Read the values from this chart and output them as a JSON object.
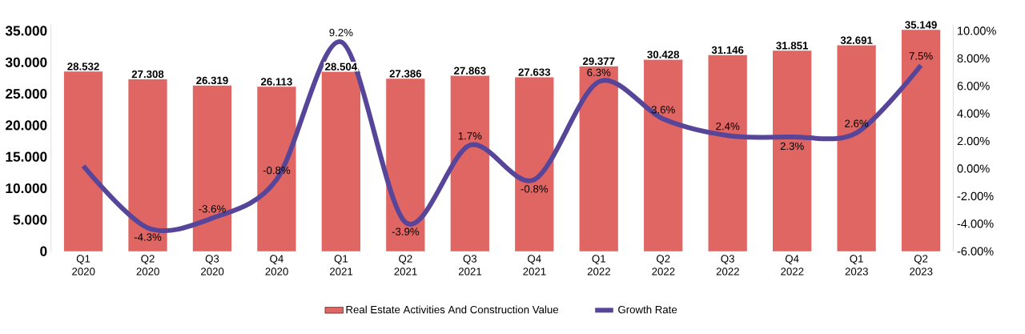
{
  "chart_data": {
    "type": "bar",
    "categories": [
      "Q1 2020",
      "Q2 2020",
      "Q3 2020",
      "Q4 2020",
      "Q1 2021",
      "Q2 2021",
      "Q3 2021",
      "Q4 2021",
      "Q1 2022",
      "Q2 2022",
      "Q3 2022",
      "Q4 2022",
      "Q1 2023",
      "Q2 2023"
    ],
    "series": [
      {
        "name": "Real Estate Activities And Construction Value",
        "color": "#e06663",
        "values": [
          28.532,
          27.308,
          26.319,
          26.113,
          28.504,
          27.386,
          27.863,
          27.633,
          29.377,
          30.428,
          31.146,
          31.851,
          32.691,
          35.149
        ],
        "value_labels": [
          "28.532",
          "27.308",
          "26.319",
          "26.113",
          "28.504",
          "27.386",
          "27.863",
          "27.633",
          "29.377",
          "30.428",
          "31.146",
          "31.851",
          "32.691",
          "35.149"
        ]
      },
      {
        "name": "Growth Rate",
        "type": "line",
        "axis": "y2",
        "color": "#574599",
        "values": [
          0.2,
          -4.3,
          -3.6,
          -0.8,
          9.2,
          -3.9,
          1.7,
          -0.8,
          6.3,
          3.6,
          2.4,
          2.3,
          2.6,
          7.5
        ],
        "value_labels": [
          null,
          "-4.3%",
          "-3.6%",
          "-0.8%",
          "9.2%",
          "-3.9%",
          "1.7%",
          "-0.8%",
          "6.3%",
          "3.6%",
          "2.4%",
          "2.3%",
          "2.6%",
          "7.5%"
        ]
      }
    ],
    "ylim": [
      0,
      36
    ],
    "yticks": [
      {
        "value": 0,
        "label": "0"
      },
      {
        "value": 5,
        "label": "5.000"
      },
      {
        "value": 10,
        "label": "10.000"
      },
      {
        "value": 15,
        "label": "15.000"
      },
      {
        "value": 20,
        "label": "20.000"
      },
      {
        "value": 25,
        "label": "25.000"
      },
      {
        "value": 30,
        "label": "30.000"
      },
      {
        "value": 35,
        "label": "35.000"
      }
    ],
    "y2lim": [
      -6,
      10.46
    ],
    "y2ticks": [
      {
        "value": -6,
        "label": "-6.00%"
      },
      {
        "value": -4,
        "label": "-4.00%"
      },
      {
        "value": -2,
        "label": "-2.00%"
      },
      {
        "value": 0,
        "label": "0.00%"
      },
      {
        "value": 2,
        "label": "2.00%"
      },
      {
        "value": 4,
        "label": "4.00%"
      },
      {
        "value": 6,
        "label": "6.00%"
      },
      {
        "value": 8,
        "label": "8.00%"
      },
      {
        "value": 10,
        "label": "10.00%"
      }
    ],
    "legend": "bottom"
  }
}
